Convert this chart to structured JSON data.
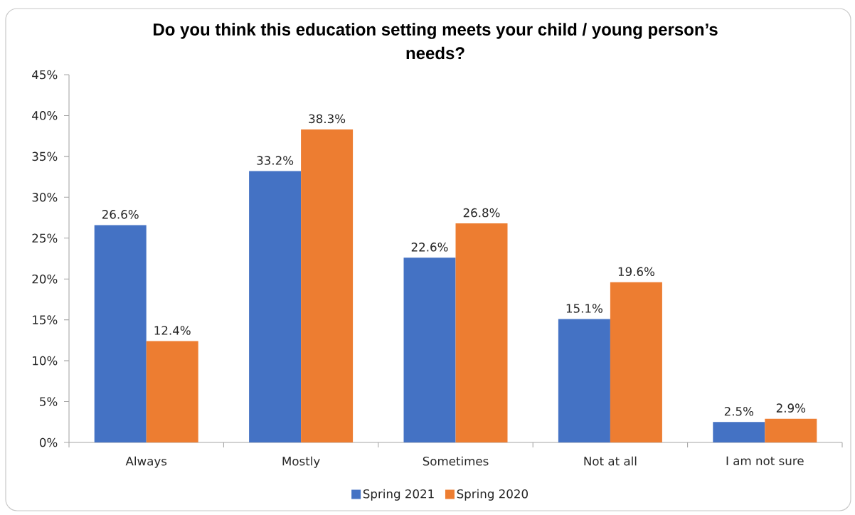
{
  "chart_data": {
    "type": "bar",
    "title": "Do you think this education setting meets your child / young person’s needs?",
    "categories": [
      "Always",
      "Mostly",
      "Sometimes",
      "Not at all",
      "I am not sure"
    ],
    "series": [
      {
        "name": "Spring 2021",
        "color": "#4472c4",
        "values": [
          26.6,
          33.2,
          22.6,
          15.1,
          2.5
        ],
        "value_labels": [
          "26.6%",
          "33.2%",
          "22.6%",
          "15.1%",
          "2.5%"
        ]
      },
      {
        "name": "Spring 2020",
        "color": "#ed7d31",
        "values": [
          12.4,
          38.3,
          26.8,
          19.6,
          2.9
        ],
        "value_labels": [
          "12.4%",
          "38.3%",
          "26.8%",
          "19.6%",
          "2.9%"
        ]
      }
    ],
    "ylim": [
      0,
      45
    ],
    "yticks": [
      {
        "value": 0,
        "label": "0%"
      },
      {
        "value": 5,
        "label": "5%"
      },
      {
        "value": 10,
        "label": "10%"
      },
      {
        "value": 15,
        "label": "15%"
      },
      {
        "value": 20,
        "label": "20%"
      },
      {
        "value": 25,
        "label": "25%"
      },
      {
        "value": 30,
        "label": "30%"
      },
      {
        "value": 35,
        "label": "35%"
      },
      {
        "value": 40,
        "label": "40%"
      },
      {
        "value": 45,
        "label": "45%"
      }
    ],
    "legend": "bottom"
  }
}
